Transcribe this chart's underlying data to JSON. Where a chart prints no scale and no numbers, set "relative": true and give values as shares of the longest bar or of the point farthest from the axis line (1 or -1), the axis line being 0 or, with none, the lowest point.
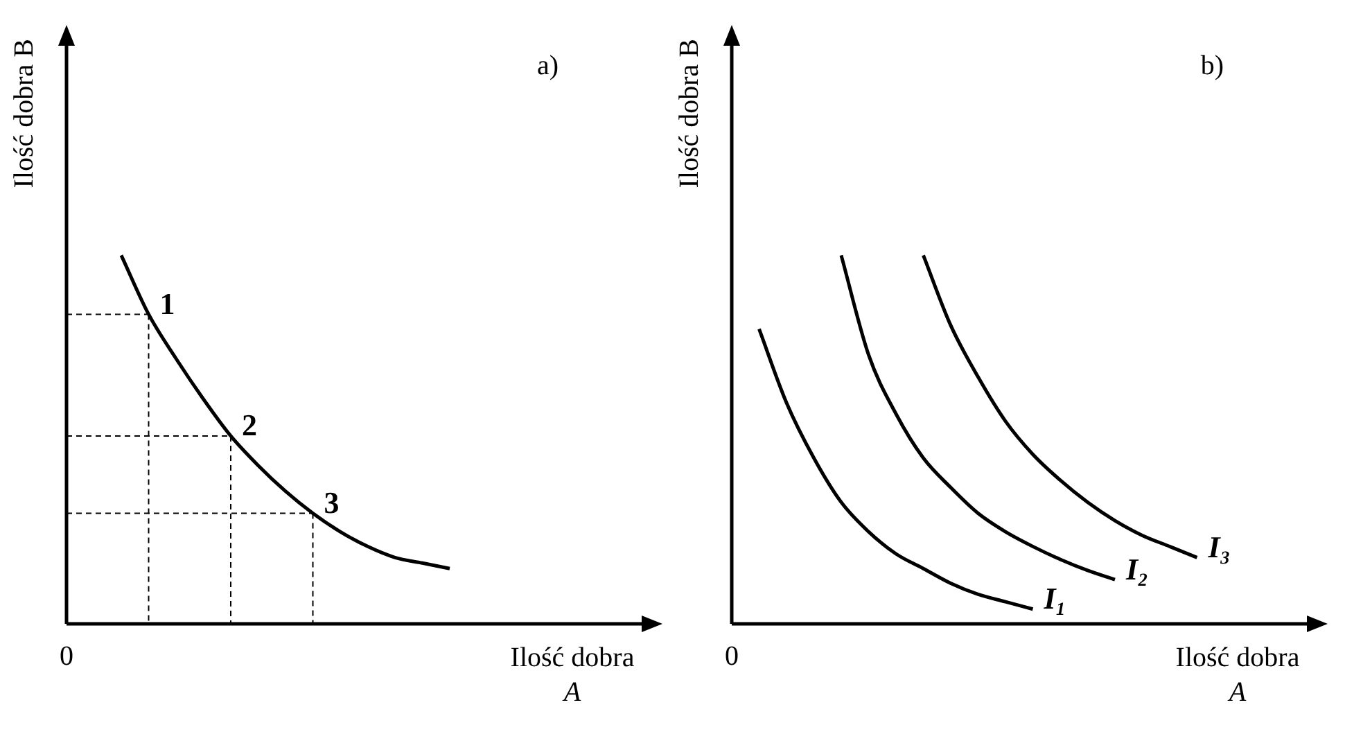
{
  "chart_data": [
    {
      "type": "line",
      "title": "a)",
      "xlabel": "Ilość dobra A",
      "ylabel": "Ilość dobra B",
      "relative": true,
      "marker": "none",
      "annotations": [
        "0"
      ],
      "categories": [
        null,
        null,
        null,
        null,
        null,
        null,
        null,
        null,
        null,
        null,
        null,
        null,
        null,
        null,
        null,
        null,
        null,
        null,
        null,
        null,
        null
      ],
      "series": [
        {
          "color": "#000000",
          "line_style": "solid",
          "values": [
            null,
            null,
            1.0,
            0.84,
            0.72,
            0.61,
            0.51,
            0.43,
            0.36,
            0.3,
            0.25,
            0.21,
            0.18,
            0.165,
            0.15,
            null,
            null,
            null,
            null,
            null,
            null
          ]
        },
        {
          "name": "1",
          "color": "#000000",
          "line_style": "dashed",
          "values": [
            0.84,
            0.84,
            0.84,
            0.84,
            null,
            null,
            null,
            null,
            null,
            null,
            null,
            null,
            null,
            null,
            null,
            null,
            null,
            null,
            null,
            null,
            null
          ]
        },
        {
          "name": "2",
          "color": "#000000",
          "line_style": "dashed",
          "values": [
            0.51,
            0.51,
            0.51,
            0.51,
            0.51,
            0.51,
            0.51,
            null,
            null,
            null,
            null,
            null,
            null,
            null,
            null,
            null,
            null,
            null,
            null,
            null,
            null
          ]
        },
        {
          "name": "3",
          "color": "#000000",
          "line_style": "dashed",
          "values": [
            0.3,
            0.3,
            0.3,
            0.3,
            0.3,
            0.3,
            0.3,
            0.3,
            0.3,
            0.3,
            null,
            null,
            null,
            null,
            null,
            null,
            null,
            null,
            null,
            null,
            null
          ]
        }
      ]
    },
    {
      "type": "line",
      "title": "b)",
      "xlabel": "Ilość dobra A",
      "ylabel": "Ilość dobra B",
      "relative": true,
      "marker": "none",
      "line_style": "solid",
      "annotations": [
        "0"
      ],
      "categories": [
        null,
        null,
        null,
        null,
        null,
        null,
        null,
        null,
        null,
        null,
        null,
        null,
        null,
        null,
        null,
        null,
        null,
        null,
        null,
        null,
        null
      ],
      "series": [
        {
          "name": "I₁",
          "color": "#000000",
          "values": [
            null,
            0.8,
            0.6,
            0.45,
            0.33,
            0.25,
            0.19,
            0.15,
            0.11,
            0.08,
            0.06,
            0.04,
            null,
            null,
            null,
            null,
            null,
            null,
            null,
            null,
            null
          ]
        },
        {
          "name": "I₂",
          "color": "#000000",
          "values": [
            null,
            null,
            null,
            null,
            1.0,
            0.73,
            0.57,
            0.45,
            0.37,
            0.3,
            0.25,
            0.21,
            0.175,
            0.145,
            0.12,
            null,
            null,
            null,
            null,
            null,
            null
          ]
        },
        {
          "name": "I₃",
          "color": "#000000",
          "values": [
            null,
            null,
            null,
            null,
            null,
            null,
            null,
            1.0,
            0.81,
            0.67,
            0.55,
            0.46,
            0.39,
            0.33,
            0.28,
            0.24,
            0.21,
            0.18,
            null,
            null,
            null
          ]
        }
      ]
    }
  ]
}
